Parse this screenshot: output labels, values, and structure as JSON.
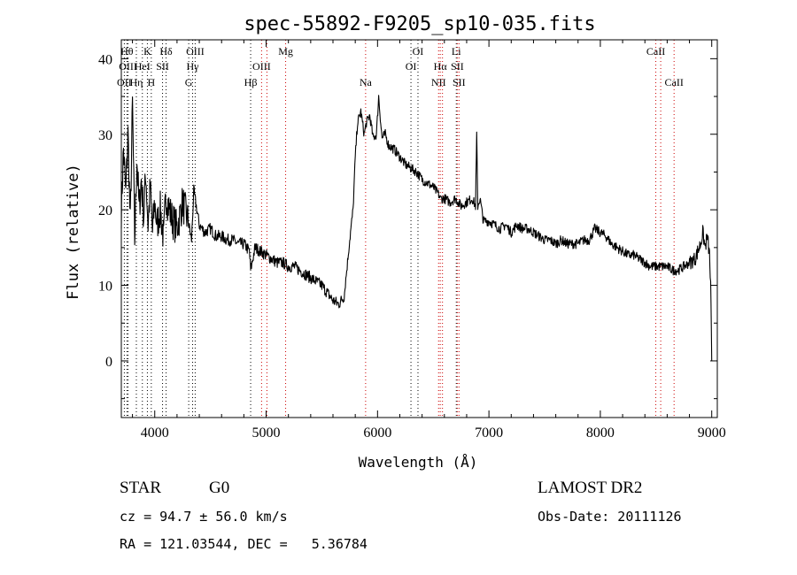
{
  "chart_data": {
    "type": "line",
    "title": "spec-55892-F9205_sp10-035.fits",
    "xlabel": "Wavelength (Å)",
    "ylabel": "Flux (relative)",
    "xlim": [
      3700,
      9050
    ],
    "ylim": [
      -7.5,
      42.5
    ],
    "xticks": [
      4000,
      5000,
      6000,
      7000,
      8000,
      9000
    ],
    "yticks": [
      0,
      10,
      20,
      30,
      40
    ],
    "grid": false,
    "series": [
      {
        "x": [
          3700,
          3720,
          3740,
          3760,
          3780,
          3800,
          3820,
          3840,
          3860,
          3880,
          3900,
          3920,
          3940,
          3960,
          3980,
          4000,
          4020,
          4050,
          4080,
          4100,
          4150,
          4200,
          4250,
          4300,
          4330,
          4350,
          4400,
          4450,
          4500,
          4550,
          4600,
          4650,
          4700,
          4750,
          4800,
          4850,
          4861,
          4900,
          4950,
          5000,
          5050,
          5100,
          5150,
          5200,
          5250,
          5300,
          5350,
          5400,
          5450,
          5500,
          5550,
          5600,
          5650,
          5700,
          5750,
          5780,
          5800,
          5820,
          5850,
          5880,
          5900,
          5930,
          5960,
          5990,
          6010,
          6040,
          6070,
          6100,
          6150,
          6200,
          6250,
          6300,
          6350,
          6400,
          6450,
          6500,
          6550,
          6563,
          6600,
          6650,
          6700,
          6750,
          6800,
          6850,
          6880,
          6890,
          6900,
          6920,
          6950,
          7000,
          7050,
          7100,
          7150,
          7200,
          7250,
          7300,
          7350,
          7400,
          7450,
          7500,
          7550,
          7600,
          7650,
          7700,
          7750,
          7800,
          7850,
          7900,
          7950,
          8000,
          8050,
          8100,
          8150,
          8200,
          8250,
          8300,
          8350,
          8400,
          8450,
          8500,
          8550,
          8600,
          8650,
          8700,
          8750,
          8800,
          8850,
          8900,
          8920,
          8940,
          8960,
          8980,
          8990,
          9000
        ],
        "y": [
          20.0,
          28.0,
          22.0,
          30.0,
          18.0,
          34.0,
          16.0,
          27.0,
          20.0,
          24.0,
          19.0,
          25.0,
          18.0,
          23.0,
          17.0,
          21.0,
          18.0,
          20.0,
          16.0,
          22.0,
          19.0,
          17.5,
          21.0,
          18.5,
          16.0,
          22.5,
          18.0,
          17.0,
          17.5,
          16.5,
          16.5,
          16.0,
          16.0,
          15.5,
          15.5,
          14.5,
          12.0,
          15.0,
          14.5,
          14.0,
          13.5,
          13.0,
          13.0,
          12.5,
          12.5,
          12.0,
          11.5,
          11.0,
          10.5,
          10.0,
          9.0,
          8.0,
          7.5,
          8.5,
          16.0,
          20.0,
          27.0,
          31.5,
          33.0,
          30.0,
          31.5,
          32.5,
          29.5,
          30.0,
          35.0,
          29.5,
          30.0,
          28.5,
          28.0,
          27.0,
          26.0,
          25.5,
          25.0,
          24.0,
          23.5,
          23.0,
          22.0,
          21.5,
          21.5,
          21.0,
          21.5,
          20.5,
          21.0,
          21.5,
          20.5,
          30.0,
          20.5,
          21.5,
          18.5,
          18.5,
          18.0,
          17.5,
          18.0,
          17.0,
          18.0,
          17.5,
          17.5,
          17.0,
          16.5,
          16.0,
          16.0,
          15.5,
          16.0,
          15.5,
          15.5,
          15.5,
          16.0,
          16.0,
          17.5,
          17.0,
          16.5,
          15.5,
          15.0,
          14.5,
          14.0,
          14.0,
          13.5,
          13.0,
          12.5,
          12.5,
          12.5,
          12.5,
          12.0,
          12.0,
          12.5,
          13.0,
          13.5,
          15.5,
          17.0,
          15.0,
          16.5,
          14.0,
          10.0,
          0.0
        ]
      }
    ],
    "lines": [
      {
        "name": "OII",
        "x": 3727,
        "row": 2,
        "color": "#000000"
      },
      {
        "name": "Hθ",
        "x": 3750,
        "row": 0,
        "color": "#000000"
      },
      {
        "name": "OIII",
        "x": 3760,
        "row": 1,
        "color": "#000000"
      },
      {
        "name": "Hη",
        "x": 3835,
        "row": 2,
        "color": "#000000"
      },
      {
        "name": "K",
        "x": 3934,
        "row": 0,
        "color": "#000000"
      },
      {
        "name": "HeI",
        "x": 3889,
        "row": 1,
        "color": "#000000"
      },
      {
        "name": "H",
        "x": 3969,
        "row": 2,
        "color": "#000000"
      },
      {
        "name": "SII",
        "x": 4070,
        "row": 1,
        "color": "#000000"
      },
      {
        "name": "Hδ",
        "x": 4102,
        "row": 0,
        "color": "#000000"
      },
      {
        "name": "OIII",
        "x": 4363,
        "row": 0,
        "color": "#000000"
      },
      {
        "name": "Hγ",
        "x": 4340,
        "row": 1,
        "color": "#000000"
      },
      {
        "name": "G",
        "x": 4305,
        "row": 2,
        "color": "#000000"
      },
      {
        "name": "Hβ",
        "x": 4861,
        "row": 2,
        "color": "#000000"
      },
      {
        "name": "OIII",
        "x": 4959,
        "row": 1,
        "color": "#000000"
      },
      {
        "name": "OIII",
        "x": 5007,
        "row": -1,
        "color": "#000000"
      },
      {
        "name": "Mg",
        "x": 5175,
        "row": 0,
        "color": "#000000"
      },
      {
        "name": "Na",
        "x": 5893,
        "row": 2,
        "color": "#000000"
      },
      {
        "name": "OI",
        "x": 6300,
        "row": 1,
        "color": "#000000"
      },
      {
        "name": "OI",
        "x": 6363,
        "row": 0,
        "color": "#000000"
      },
      {
        "name": "NII",
        "x": 6548,
        "row": 2,
        "color": "#000000"
      },
      {
        "name": "Hα",
        "x": 6563,
        "row": 1,
        "color": "#000000"
      },
      {
        "name": "NII",
        "x": 6583,
        "row": -1,
        "color": "#000000"
      },
      {
        "name": "Li",
        "x": 6707,
        "row": 0,
        "color": "#000000"
      },
      {
        "name": "SII",
        "x": 6716,
        "row": 1,
        "color": "#000000"
      },
      {
        "name": "SII",
        "x": 6731,
        "row": 2,
        "color": "#000000"
      },
      {
        "name": "CaII",
        "x": 8498,
        "row": 0,
        "color": "#000000"
      },
      {
        "name": "CaII",
        "x": 8542,
        "row": -1,
        "color": "#000000"
      },
      {
        "name": "CaII",
        "x": 8662,
        "row": 2,
        "color": "#000000"
      }
    ],
    "colors": {
      "spectrum": "#000000",
      "emission_marker": "#cc0000",
      "absorption_marker": "#000000"
    },
    "emission_lines": [
      4959,
      5007,
      5175,
      5893,
      6548,
      6563,
      6583,
      6716,
      6731,
      8498,
      8542,
      8662
    ]
  },
  "footer": {
    "object_class": "STAR",
    "object_subclass": "G0",
    "survey": "LAMOST DR2",
    "cz": "cz = 94.7 ± 56.0 km/s",
    "obs_date": "Obs-Date: 20111126",
    "radec": "RA = 121.03544, DEC =   5.36784"
  }
}
